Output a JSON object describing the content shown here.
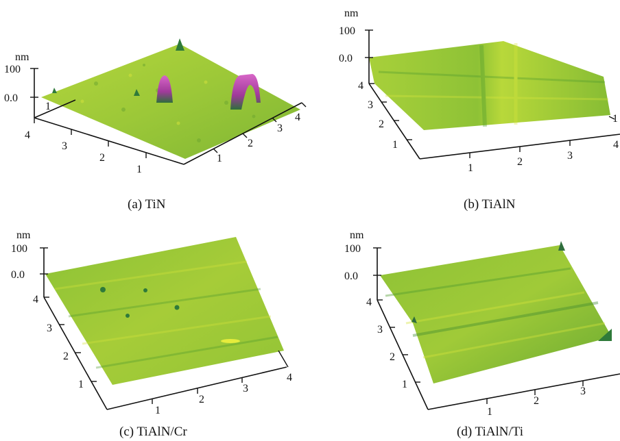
{
  "figure": {
    "panels": [
      {
        "caption": "(a) TiN",
        "unit": "nm",
        "z_ticks": [
          "100",
          "0.0"
        ],
        "left_ticks": [
          "4",
          "3",
          "2",
          "1"
        ],
        "right_ticks": [
          "1",
          "2",
          "3",
          "4"
        ],
        "back_tick": "1",
        "peak_color": "#b0409c"
      },
      {
        "caption": "(b) TiAlN",
        "unit": "nm",
        "z_ticks": [
          "100",
          "0.0"
        ],
        "left_ticks": [
          "4",
          "3",
          "2",
          "1"
        ],
        "bottom_ticks": [
          "1",
          "2",
          "3",
          "4"
        ],
        "side_tick": "1"
      },
      {
        "caption": "(c) TiAlN/Cr",
        "unit": "nm",
        "z_ticks": [
          "100",
          "0.0"
        ],
        "left_ticks": [
          "4",
          "3",
          "2",
          "1"
        ],
        "bottom_ticks": [
          "1",
          "2",
          "3",
          "4"
        ]
      },
      {
        "caption": "(d) TiAlN/Ti",
        "unit": "nm",
        "z_ticks": [
          "100",
          "0.0"
        ],
        "left_ticks": [
          "4",
          "3",
          "2",
          "1"
        ],
        "bottom_ticks": [
          "1",
          "2",
          "3"
        ]
      }
    ],
    "surface_colors": {
      "base": "#9cc838",
      "light": "#c8dc38",
      "dark": "#4e9a2e",
      "deep": "#2f6e3c"
    }
  }
}
